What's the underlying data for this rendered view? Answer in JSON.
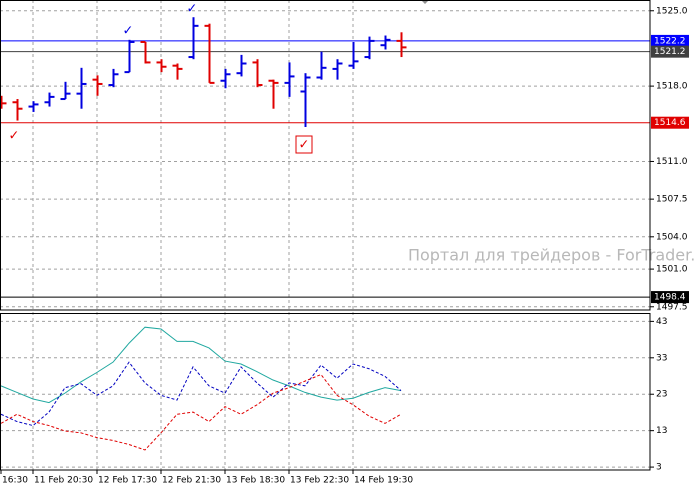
{
  "chart_data": [
    {
      "type": "ohlc",
      "watermark": "Портал для трейдеров - ForTrader.ru",
      "categories": [
        "16:30",
        null,
        "11 Feb 20:30",
        null,
        null,
        null,
        "12 Feb 17:30",
        null,
        null,
        null,
        "12 Feb 21:30",
        null,
        null,
        null,
        "13 Feb 18:30",
        null,
        null,
        null,
        "13 Feb 22:30",
        null,
        null,
        null,
        "14 Feb 19:30",
        null,
        null,
        null
      ],
      "open": [
        1516.8,
        1516.5,
        1516.1,
        1516.5,
        1516.8,
        1517.3,
        1518.6,
        1518.1,
        1519.3,
        1522.1,
        1520.2,
        1519.9,
        1520.7,
        1523.6,
        1518.5,
        1519.2,
        1520.2,
        1518.5,
        1518.3,
        1517.5,
        1518.8,
        1519.6,
        1519.9,
        1520.7,
        1521.8,
        1522.2
      ],
      "high": [
        1517.1,
        1516.8,
        1516.6,
        1517.4,
        1518.4,
        1519.7,
        1519.0,
        1519.6,
        1522.3,
        1522.1,
        1520.5,
        1520.1,
        1524.4,
        1523.8,
        1519.6,
        1520.9,
        1520.5,
        1518.6,
        1520.2,
        1519.2,
        1521.2,
        1520.5,
        1522.1,
        1522.6,
        1522.7,
        1523.0
      ],
      "low": [
        1515.9,
        1514.8,
        1515.6,
        1516.1,
        1516.8,
        1515.9,
        1517.1,
        1517.9,
        1519.3,
        1520.1,
        1519.3,
        1518.6,
        1520.5,
        1518.3,
        1517.8,
        1518.9,
        1517.9,
        1515.9,
        1517.0,
        1514.2,
        1518.6,
        1518.6,
        1519.6,
        1520.5,
        1521.4,
        1520.7
      ],
      "close": [
        1516.4,
        1515.9,
        1516.3,
        1517.0,
        1517.3,
        1518.2,
        1518.2,
        1519.1,
        1522.1,
        1520.2,
        1519.8,
        1519.6,
        1523.6,
        1518.3,
        1519.1,
        1520.1,
        1518.1,
        1518.3,
        1518.9,
        1518.8,
        1519.7,
        1520.1,
        1520.3,
        1522.2,
        1522.3,
        1521.6
      ],
      "up_color": "#0000e0",
      "down_color": "#e00000",
      "ylim": [
        1497.2,
        1526.0
      ],
      "yticks": [
        {
          "value": 1525,
          "label": "1525.0"
        },
        {
          "value": 1518,
          "label": "1518.0"
        },
        {
          "value": 1511,
          "label": "1511.0"
        },
        1507.5,
        {
          "value": 1504,
          "label": "1504.0"
        },
        {
          "value": 1501,
          "label": "1501.0"
        },
        1497.5
      ],
      "grid": true,
      "levels": [
        {
          "value": 1522.2,
          "color": "#0000ff"
        },
        {
          "value": 1521.2,
          "color": "#404040"
        },
        {
          "value": 1514.6,
          "color": "#e00000"
        },
        {
          "value": 1498.4,
          "color": "#000000"
        }
      ]
    },
    {
      "type": "line",
      "ylim": [
        2.2,
        45.3
      ],
      "yticks": [
        43,
        33,
        23,
        13,
        3
      ],
      "grid": true,
      "series": [
        {
          "color": "#20a8a0",
          "dashed": false,
          "values": [
            25.3,
            23.5,
            21.7,
            20.7,
            23.3,
            26.4,
            29.0,
            31.8,
            37.0,
            41.4,
            40.9,
            37.5,
            37.5,
            35.7,
            32.1,
            31.3,
            29.2,
            26.9,
            25.3,
            23.5,
            22.2,
            21.4,
            21.9,
            23.5,
            24.8,
            24.0
          ]
        },
        {
          "color": "#0000c0",
          "dashed": true,
          "values": [
            17.5,
            15.5,
            14.4,
            18.1,
            24.8,
            25.9,
            22.7,
            25.3,
            31.8,
            26.1,
            22.7,
            21.4,
            30.5,
            25.3,
            23.3,
            30.5,
            26.1,
            22.2,
            26.1,
            25.3,
            31.0,
            27.4,
            31.3,
            30.0,
            27.9,
            24.0
          ]
        },
        {
          "color": "#e00000",
          "dashed": true,
          "values": [
            15.0,
            17.5,
            15.5,
            14.4,
            12.9,
            12.4,
            11.1,
            10.3,
            9.2,
            7.7,
            12.4,
            17.5,
            18.1,
            15.5,
            19.6,
            17.5,
            20.1,
            23.3,
            24.8,
            26.6,
            28.4,
            22.7,
            20.1,
            17.0,
            15.0,
            17.5
          ]
        }
      ]
    }
  ]
}
